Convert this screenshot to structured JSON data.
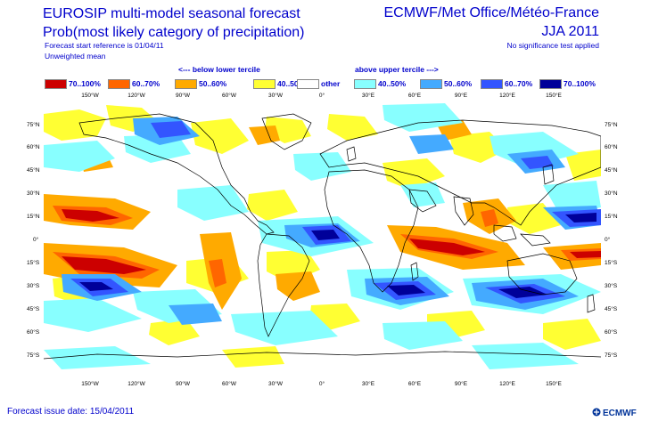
{
  "header": {
    "title_line1": "EUROSIP multi-model seasonal forecast",
    "title_line2": "Prob(most likely category of precipitation)",
    "small_line1": "Forecast start reference is 01/04/11",
    "small_line2": "Unweighted mean",
    "org": "ECMWF/Met Office/Météo-France",
    "season": "JJA 2011",
    "significance": "No significance test applied"
  },
  "legend": {
    "below_header": "<--- below lower tercile",
    "above_header": "above upper tercile --->",
    "items": [
      {
        "label": "70..100%",
        "color": "#cc0000"
      },
      {
        "label": "60..70%",
        "color": "#ff6600"
      },
      {
        "label": "50..60%",
        "color": "#ffaa00"
      },
      {
        "label": "40..50%",
        "color": "#ffff33"
      },
      {
        "label": "other",
        "color": "#ffffff"
      },
      {
        "label": "40..50%",
        "color": "#88ffff"
      },
      {
        "label": "50..60%",
        "color": "#44aaff"
      },
      {
        "label": "60..70%",
        "color": "#3355ff"
      },
      {
        "label": "70..100%",
        "color": "#000099"
      }
    ]
  },
  "map": {
    "lon_labels": [
      "150°W",
      "120°W",
      "90°W",
      "60°W",
      "30°W",
      "0°",
      "30°E",
      "60°E",
      "90°E",
      "120°E",
      "150°E"
    ],
    "lat_labels": [
      "75°N",
      "60°N",
      "45°N",
      "30°N",
      "15°N",
      "0°",
      "15°S",
      "30°S",
      "45°S",
      "60°S",
      "75°S"
    ]
  },
  "footer": {
    "issue_date": "Forecast issue date: 15/04/2011",
    "logo": "ECMWF"
  },
  "colors": {
    "text": "#0000cc",
    "red": "#cc0000",
    "orange": "#ff6600",
    "amber": "#ffaa00",
    "yellow": "#ffff33",
    "cyan": "#88ffff",
    "lightblue": "#44aaff",
    "blue": "#3355ff",
    "navy": "#000099"
  }
}
